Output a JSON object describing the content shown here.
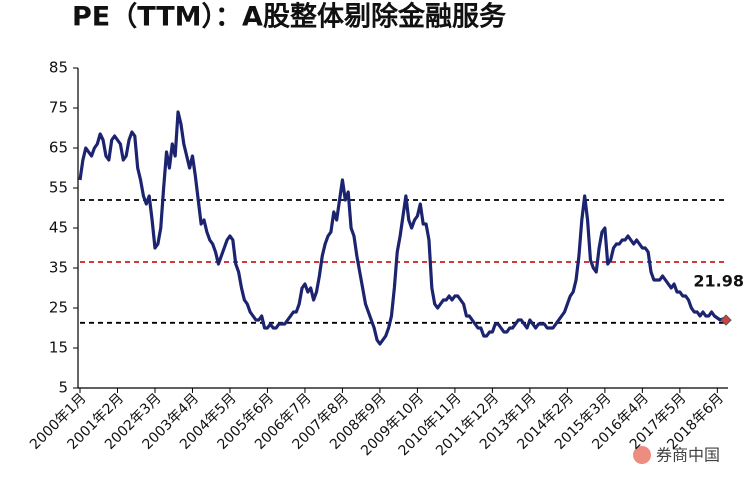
{
  "chart_data": {
    "type": "line",
    "title": "PE（TTM）：A股整体剔除金融服务",
    "categories": [
      "2000年1月",
      null,
      null,
      null,
      null,
      null,
      null,
      null,
      null,
      null,
      null,
      null,
      null,
      "2001年2月",
      null,
      null,
      null,
      null,
      null,
      null,
      null,
      null,
      null,
      null,
      null,
      null,
      "2002年3月",
      null,
      null,
      null,
      null,
      null,
      null,
      null,
      null,
      null,
      null,
      null,
      null,
      "2003年4月",
      null,
      null,
      null,
      null,
      null,
      null,
      null,
      null,
      null,
      null,
      null,
      null,
      "2004年5月",
      null,
      null,
      null,
      null,
      null,
      null,
      null,
      null,
      null,
      null,
      null,
      null,
      "2005年6月",
      null,
      null,
      null,
      null,
      null,
      null,
      null,
      null,
      null,
      null,
      null,
      null,
      "2006年7月",
      null,
      null,
      null,
      null,
      null,
      null,
      null,
      null,
      null,
      null,
      null,
      null,
      "2007年8月",
      null,
      null,
      null,
      null,
      null,
      null,
      null,
      null,
      null,
      null,
      null,
      null,
      "2008年9月",
      null,
      null,
      null,
      null,
      null,
      null,
      null,
      null,
      null,
      null,
      null,
      null,
      "2009年10月",
      null,
      null,
      null,
      null,
      null,
      null,
      null,
      null,
      null,
      null,
      null,
      null,
      "2010年11月",
      null,
      null,
      null,
      null,
      null,
      null,
      null,
      null,
      null,
      null,
      null,
      null,
      "2011年12月",
      null,
      null,
      null,
      null,
      null,
      null,
      null,
      null,
      null,
      null,
      null,
      null,
      "2013年1月",
      null,
      null,
      null,
      null,
      null,
      null,
      null,
      null,
      null,
      null,
      null,
      null,
      "2014年2月",
      null,
      null,
      null,
      null,
      null,
      null,
      null,
      null,
      null,
      null,
      null,
      null,
      "2015年3月",
      null,
      null,
      null,
      null,
      null,
      null,
      null,
      null,
      null,
      null,
      null,
      null,
      "2016年4月",
      null,
      null,
      null,
      null,
      null,
      null,
      null,
      null,
      null,
      null,
      null,
      null,
      "2017年5月",
      null,
      null,
      null,
      null,
      null,
      null,
      null,
      null,
      null,
      null,
      null,
      null,
      "2018年6月",
      null,
      null,
      null
    ],
    "values": [
      57,
      62,
      65,
      64,
      63,
      65,
      66,
      68.5,
      67,
      63,
      62,
      67,
      68,
      67,
      66,
      62,
      63,
      67,
      69,
      68,
      60,
      57,
      53,
      51,
      53,
      47,
      40,
      41,
      45,
      55,
      64,
      60,
      66,
      63,
      74,
      71,
      66,
      63,
      60,
      63,
      58,
      52,
      46,
      47,
      44,
      42,
      41,
      39,
      36,
      38,
      40,
      42,
      43,
      42,
      36,
      34,
      30,
      27,
      26,
      24,
      23,
      22,
      22,
      23,
      20,
      20,
      21,
      20,
      20,
      21,
      21,
      21,
      22,
      23,
      24,
      24,
      26,
      30,
      31,
      29,
      30,
      27,
      29,
      33,
      38,
      41,
      43,
      44,
      49,
      47,
      52,
      57,
      52,
      54,
      45,
      43,
      38,
      34,
      30,
      26,
      24,
      22,
      20,
      17,
      16,
      17,
      18,
      20,
      23,
      30,
      39,
      43,
      48,
      53,
      47,
      45,
      47,
      48,
      51,
      46,
      46,
      42,
      30,
      26,
      25,
      26,
      27,
      27,
      28,
      27,
      28,
      28,
      27,
      26,
      23,
      23,
      22,
      21,
      20,
      20,
      18,
      18,
      19,
      19,
      21,
      21,
      20,
      19,
      19,
      20,
      20,
      21,
      22,
      22,
      21,
      20,
      22,
      21,
      20,
      21,
      21,
      21,
      20,
      20,
      20,
      21,
      22,
      23,
      24,
      26,
      28,
      29,
      32,
      38,
      47,
      53,
      47,
      37,
      35,
      34,
      40,
      44,
      45,
      36,
      37,
      40,
      41,
      41,
      42,
      42,
      43,
      42,
      41,
      42,
      41,
      40,
      40,
      39,
      34,
      32,
      32,
      32,
      33,
      32,
      31,
      30,
      31,
      29,
      29,
      28,
      28,
      27,
      25,
      24,
      24,
      23,
      24,
      23,
      23,
      24,
      23,
      22.5,
      22,
      22.3,
      21.98
    ],
    "color": "#1c2470",
    "ylim": [
      5,
      85
    ],
    "yticks": [
      5,
      15,
      25,
      35,
      45,
      55,
      65,
      75,
      85
    ],
    "reference_lines": [
      {
        "value": 52,
        "color": "#000000"
      },
      {
        "value": 36.5,
        "color": "#cc1f1f"
      },
      {
        "value": 21.3,
        "color": "#000000"
      }
    ],
    "watermark": "券商中国"
  }
}
